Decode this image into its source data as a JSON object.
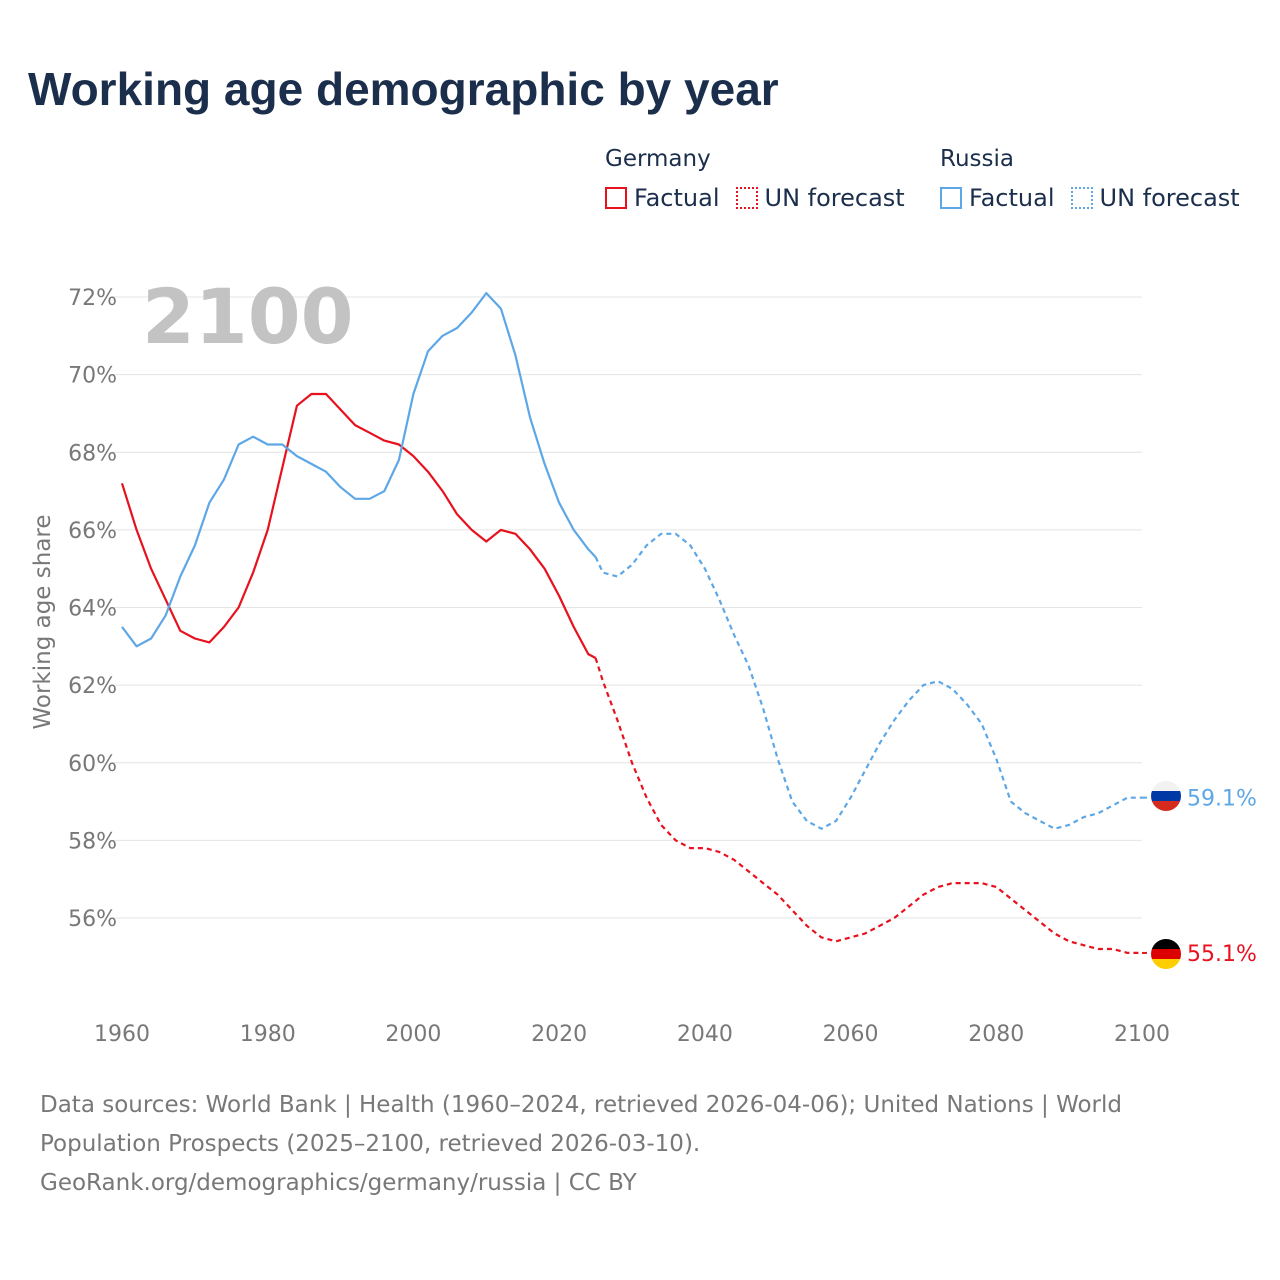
{
  "title": "Working age demographic by year",
  "legend": {
    "groups": [
      {
        "name": "Germany",
        "color": "#e8111e",
        "items": [
          "Factual",
          "UN forecast"
        ]
      },
      {
        "name": "Russia",
        "color": "#5ea7e6",
        "items": [
          "Factual",
          "UN forecast"
        ]
      }
    ]
  },
  "footer": {
    "sources": "Data sources: World Bank | Health (1960–2024, retrieved 2026-04-06); United Nations | World Population Prospects (2025–2100, retrieved 2026-03-10).",
    "link": "GeoRank.org/demographics/germany/russia | CC BY"
  },
  "chart_data": {
    "type": "line",
    "title": "Working age demographic by year",
    "year_watermark": "2100",
    "xlabel": "",
    "ylabel": "Working age share",
    "xlim": [
      1960,
      2100
    ],
    "ylim": [
      54,
      73
    ],
    "x_ticks": [
      1960,
      1980,
      2000,
      2020,
      2040,
      2060,
      2080,
      2100
    ],
    "y_ticks": [
      56,
      58,
      60,
      62,
      64,
      66,
      68,
      70,
      72
    ],
    "y_tick_suffix": "%",
    "grid": true,
    "forecast_start": 2025,
    "series": [
      {
        "name": "Germany",
        "color": "#e8111e",
        "end_label": "55.1%",
        "flag": "germany-flag",
        "points": [
          [
            1960,
            67.2
          ],
          [
            1962,
            66.0
          ],
          [
            1964,
            65.0
          ],
          [
            1966,
            64.2
          ],
          [
            1968,
            63.4
          ],
          [
            1970,
            63.2
          ],
          [
            1972,
            63.1
          ],
          [
            1974,
            63.5
          ],
          [
            1976,
            64.0
          ],
          [
            1978,
            64.9
          ],
          [
            1980,
            66.0
          ],
          [
            1982,
            67.6
          ],
          [
            1984,
            69.2
          ],
          [
            1986,
            69.5
          ],
          [
            1988,
            69.5
          ],
          [
            1990,
            69.1
          ],
          [
            1992,
            68.7
          ],
          [
            1994,
            68.5
          ],
          [
            1996,
            68.3
          ],
          [
            1998,
            68.2
          ],
          [
            2000,
            67.9
          ],
          [
            2002,
            67.5
          ],
          [
            2004,
            67.0
          ],
          [
            2006,
            66.4
          ],
          [
            2008,
            66.0
          ],
          [
            2010,
            65.7
          ],
          [
            2012,
            66.0
          ],
          [
            2014,
            65.9
          ],
          [
            2016,
            65.5
          ],
          [
            2018,
            65.0
          ],
          [
            2020,
            64.3
          ],
          [
            2022,
            63.5
          ],
          [
            2024,
            62.8
          ],
          [
            2025,
            62.7
          ],
          [
            2026,
            62.1
          ],
          [
            2028,
            61.1
          ],
          [
            2030,
            60.0
          ],
          [
            2032,
            59.1
          ],
          [
            2034,
            58.4
          ],
          [
            2036,
            58.0
          ],
          [
            2038,
            57.8
          ],
          [
            2040,
            57.8
          ],
          [
            2042,
            57.7
          ],
          [
            2044,
            57.5
          ],
          [
            2046,
            57.2
          ],
          [
            2048,
            56.9
          ],
          [
            2050,
            56.6
          ],
          [
            2052,
            56.2
          ],
          [
            2054,
            55.8
          ],
          [
            2056,
            55.5
          ],
          [
            2058,
            55.4
          ],
          [
            2060,
            55.5
          ],
          [
            2062,
            55.6
          ],
          [
            2064,
            55.8
          ],
          [
            2066,
            56.0
          ],
          [
            2068,
            56.3
          ],
          [
            2070,
            56.6
          ],
          [
            2072,
            56.8
          ],
          [
            2074,
            56.9
          ],
          [
            2076,
            56.9
          ],
          [
            2078,
            56.9
          ],
          [
            2080,
            56.8
          ],
          [
            2082,
            56.5
          ],
          [
            2084,
            56.2
          ],
          [
            2086,
            55.9
          ],
          [
            2088,
            55.6
          ],
          [
            2090,
            55.4
          ],
          [
            2092,
            55.3
          ],
          [
            2094,
            55.2
          ],
          [
            2096,
            55.2
          ],
          [
            2098,
            55.1
          ],
          [
            2100,
            55.1
          ]
        ]
      },
      {
        "name": "Russia",
        "color": "#5ea7e6",
        "end_label": "59.1%",
        "flag": "russia-flag",
        "points": [
          [
            1960,
            63.5
          ],
          [
            1962,
            63.0
          ],
          [
            1964,
            63.2
          ],
          [
            1966,
            63.8
          ],
          [
            1968,
            64.8
          ],
          [
            1970,
            65.6
          ],
          [
            1972,
            66.7
          ],
          [
            1974,
            67.3
          ],
          [
            1976,
            68.2
          ],
          [
            1978,
            68.4
          ],
          [
            1980,
            68.2
          ],
          [
            1982,
            68.2
          ],
          [
            1984,
            67.9
          ],
          [
            1986,
            67.7
          ],
          [
            1988,
            67.5
          ],
          [
            1990,
            67.1
          ],
          [
            1992,
            66.8
          ],
          [
            1994,
            66.8
          ],
          [
            1996,
            67.0
          ],
          [
            1998,
            67.8
          ],
          [
            2000,
            69.5
          ],
          [
            2002,
            70.6
          ],
          [
            2004,
            71.0
          ],
          [
            2006,
            71.2
          ],
          [
            2008,
            71.6
          ],
          [
            2010,
            72.1
          ],
          [
            2012,
            71.7
          ],
          [
            2014,
            70.5
          ],
          [
            2016,
            68.9
          ],
          [
            2018,
            67.7
          ],
          [
            2020,
            66.7
          ],
          [
            2022,
            66.0
          ],
          [
            2024,
            65.5
          ],
          [
            2025,
            65.3
          ],
          [
            2026,
            64.9
          ],
          [
            2028,
            64.8
          ],
          [
            2030,
            65.1
          ],
          [
            2032,
            65.6
          ],
          [
            2034,
            65.9
          ],
          [
            2036,
            65.9
          ],
          [
            2038,
            65.6
          ],
          [
            2040,
            65.0
          ],
          [
            2042,
            64.2
          ],
          [
            2044,
            63.3
          ],
          [
            2046,
            62.5
          ],
          [
            2048,
            61.4
          ],
          [
            2050,
            60.1
          ],
          [
            2052,
            59.0
          ],
          [
            2054,
            58.5
          ],
          [
            2056,
            58.3
          ],
          [
            2058,
            58.5
          ],
          [
            2060,
            59.1
          ],
          [
            2062,
            59.8
          ],
          [
            2064,
            60.5
          ],
          [
            2066,
            61.1
          ],
          [
            2068,
            61.6
          ],
          [
            2070,
            62.0
          ],
          [
            2072,
            62.1
          ],
          [
            2074,
            61.9
          ],
          [
            2076,
            61.5
          ],
          [
            2078,
            61.0
          ],
          [
            2080,
            60.1
          ],
          [
            2082,
            59.0
          ],
          [
            2084,
            58.7
          ],
          [
            2086,
            58.5
          ],
          [
            2088,
            58.3
          ],
          [
            2090,
            58.4
          ],
          [
            2092,
            58.6
          ],
          [
            2094,
            58.7
          ],
          [
            2096,
            58.9
          ],
          [
            2098,
            59.1
          ],
          [
            2100,
            59.1
          ]
        ]
      }
    ]
  }
}
